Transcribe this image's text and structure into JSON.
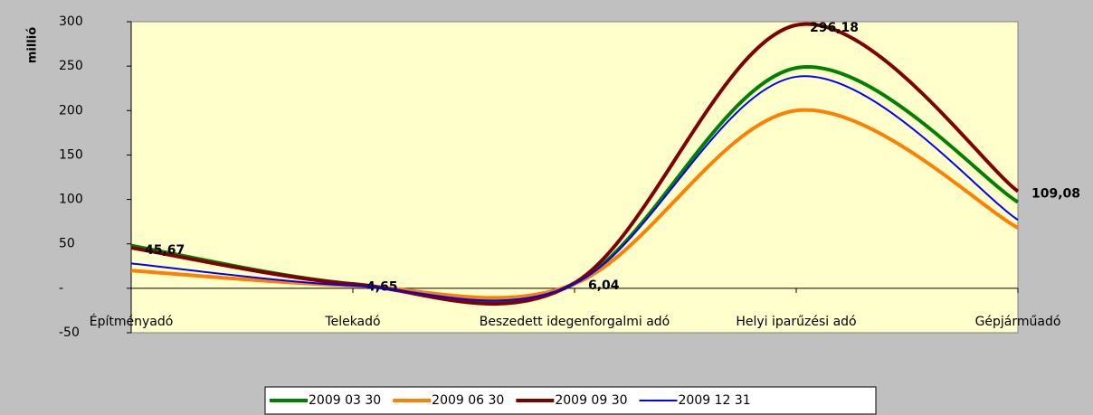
{
  "chart_data": {
    "type": "line",
    "y_label": "millió",
    "categories": [
      "Építményadó",
      "Telekadó",
      "Beszedett idegenforgalmi adó",
      "Helyi iparűzési adó",
      "Gépjárműadó"
    ],
    "series": [
      {
        "name": "2009 03 30",
        "color": "#008000",
        "values": [
          48,
          5,
          5,
          248,
          97
        ]
      },
      {
        "name": "2009 06 30",
        "color": "#ff7f00",
        "values": [
          20,
          3,
          5,
          200,
          68
        ]
      },
      {
        "name": "2009 09 30",
        "color": "#800000",
        "values": [
          45.67,
          4.65,
          6.04,
          296.18,
          109.08
        ],
        "value_labels": [
          "45,67",
          "4,65",
          "6,04",
          "296,18",
          "109,08"
        ]
      },
      {
        "name": "2009 12 31",
        "color": "#0000ff",
        "values": [
          28,
          3,
          5,
          238,
          77
        ]
      }
    ],
    "ylim": [
      -50,
      300
    ],
    "yticks": [
      -50,
      {
        "value": 0,
        "label": "-"
      },
      50,
      100,
      150,
      200,
      250,
      300
    ],
    "smooth": true,
    "legend": "bottom"
  }
}
